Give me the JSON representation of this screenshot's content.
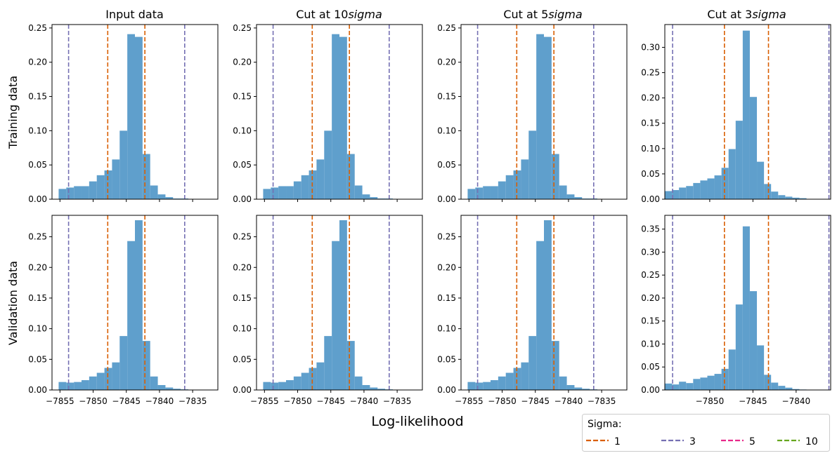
{
  "chart_data": {
    "type": "bar",
    "subtype": "histogram-grid",
    "column_titles": [
      "Input data",
      "Cut at 10",
      "Cut at 5",
      "Cut at 3"
    ],
    "column_title_suffix": "sigma",
    "row_labels": [
      "Training data",
      "Validation data"
    ],
    "xlabel": "Log-likelihood",
    "bar_color": "#5f9fcc",
    "legend": {
      "title": "Sigma:",
      "placement": "bottom-right",
      "entries": [
        {
          "label": "1",
          "color": "#d95f02"
        },
        {
          "label": "3",
          "color": "#7570b3"
        },
        {
          "label": "5",
          "color": "#e7298a"
        },
        {
          "label": "10",
          "color": "#66a61e"
        }
      ]
    },
    "panels": [
      {
        "row": 0,
        "col": 0,
        "xlim": [
          -7856.2,
          -7831.2
        ],
        "ylim": [
          0,
          0.255
        ],
        "xticks": [
          -7855,
          -7850,
          -7845,
          -7840,
          -7835
        ],
        "show_xticklabels": false,
        "yticks": [
          0.0,
          0.05,
          0.1,
          0.15,
          0.2,
          0.25
        ],
        "ytick_labels": [
          "0.00",
          "0.05",
          "0.10",
          "0.15",
          "0.20",
          "0.25"
        ],
        "bin_start": -7855.2,
        "bin_width": 1.15,
        "values": [
          0.015,
          0.017,
          0.019,
          0.019,
          0.026,
          0.035,
          0.042,
          0.058,
          0.1,
          0.241,
          0.237,
          0.066,
          0.02,
          0.007,
          0.003,
          0.001,
          0.001,
          0.0005
        ],
        "sigma_lines": [
          {
            "sigma": "1",
            "x": [
              -7847.8,
              -7842.2
            ]
          },
          {
            "sigma": "3",
            "x": [
              -7853.7,
              -7836.2
            ]
          }
        ]
      },
      {
        "row": 0,
        "col": 1,
        "xlim": [
          -7856.2,
          -7831.2
        ],
        "ylim": [
          0,
          0.255
        ],
        "xticks": [
          -7855,
          -7850,
          -7845,
          -7840,
          -7835
        ],
        "show_xticklabels": false,
        "yticks": [
          0.0,
          0.05,
          0.1,
          0.15,
          0.2,
          0.25
        ],
        "ytick_labels": [
          "0.00",
          "0.05",
          "0.10",
          "0.15",
          "0.20",
          "0.25"
        ],
        "bin_start": -7855.2,
        "bin_width": 1.15,
        "values": [
          0.015,
          0.017,
          0.019,
          0.019,
          0.026,
          0.035,
          0.042,
          0.058,
          0.1,
          0.241,
          0.237,
          0.066,
          0.02,
          0.007,
          0.003,
          0.001,
          0.001,
          0.0005
        ],
        "sigma_lines": [
          {
            "sigma": "1",
            "x": [
              -7847.8,
              -7842.2
            ]
          },
          {
            "sigma": "3",
            "x": [
              -7853.7,
              -7836.2
            ]
          }
        ]
      },
      {
        "row": 0,
        "col": 2,
        "xlim": [
          -7856.2,
          -7831.2
        ],
        "ylim": [
          0,
          0.255
        ],
        "xticks": [
          -7855,
          -7850,
          -7845,
          -7840,
          -7835
        ],
        "show_xticklabels": false,
        "yticks": [
          0.0,
          0.05,
          0.1,
          0.15,
          0.2,
          0.25
        ],
        "ytick_labels": [
          "0.00",
          "0.05",
          "0.10",
          "0.15",
          "0.20",
          "0.25"
        ],
        "bin_start": -7855.2,
        "bin_width": 1.15,
        "values": [
          0.015,
          0.017,
          0.019,
          0.019,
          0.026,
          0.035,
          0.042,
          0.058,
          0.1,
          0.241,
          0.237,
          0.066,
          0.02,
          0.007,
          0.003,
          0.001,
          0.001,
          0.0005
        ],
        "sigma_lines": [
          {
            "sigma": "1",
            "x": [
              -7847.8,
              -7842.2
            ]
          },
          {
            "sigma": "3",
            "x": [
              -7853.7,
              -7836.2
            ]
          }
        ]
      },
      {
        "row": 0,
        "col": 3,
        "xlim": [
          -7855.2,
          -7836.0
        ],
        "ylim": [
          0,
          0.345
        ],
        "xticks": [
          -7850,
          -7845,
          -7840
        ],
        "show_xticklabels": false,
        "yticks": [
          0.0,
          0.05,
          0.1,
          0.15,
          0.2,
          0.25,
          0.3
        ],
        "ytick_labels": [
          "0.00",
          "0.05",
          "0.10",
          "0.15",
          "0.20",
          "0.25",
          "0.30"
        ],
        "bin_start": -7855.2,
        "bin_width": 0.82,
        "values": [
          0.016,
          0.018,
          0.023,
          0.026,
          0.032,
          0.037,
          0.041,
          0.047,
          0.062,
          0.099,
          0.155,
          0.333,
          0.202,
          0.074,
          0.03,
          0.015,
          0.008,
          0.005,
          0.003,
          0.002
        ],
        "sigma_lines": [
          {
            "sigma": "1",
            "x": [
              -7848.3,
              -7843.2
            ]
          },
          {
            "sigma": "3",
            "x": [
              -7854.3,
              -7836.2
            ]
          }
        ]
      },
      {
        "row": 1,
        "col": 0,
        "xlim": [
          -7856.2,
          -7831.2
        ],
        "ylim": [
          0,
          0.285
        ],
        "xticks": [
          -7855,
          -7850,
          -7845,
          -7840,
          -7835
        ],
        "xtick_labels": [
          "−7855",
          "−7850",
          "−7845",
          "−7840",
          "−7835"
        ],
        "show_xticklabels": true,
        "yticks": [
          0.0,
          0.05,
          0.1,
          0.15,
          0.2,
          0.25
        ],
        "ytick_labels": [
          "0.00",
          "0.05",
          "0.10",
          "0.15",
          "0.20",
          "0.25"
        ],
        "bin_start": -7855.2,
        "bin_width": 1.15,
        "values": [
          0.013,
          0.012,
          0.013,
          0.016,
          0.022,
          0.028,
          0.036,
          0.045,
          0.088,
          0.243,
          0.277,
          0.08,
          0.022,
          0.008,
          0.004,
          0.002,
          0.001,
          0.0005
        ],
        "sigma_lines": [
          {
            "sigma": "1",
            "x": [
              -7847.8,
              -7842.2
            ]
          },
          {
            "sigma": "3",
            "x": [
              -7853.7,
              -7836.2
            ]
          }
        ]
      },
      {
        "row": 1,
        "col": 1,
        "xlim": [
          -7856.2,
          -7831.2
        ],
        "ylim": [
          0,
          0.285
        ],
        "xticks": [
          -7855,
          -7850,
          -7845,
          -7840,
          -7835
        ],
        "xtick_labels": [
          "−7855",
          "−7850",
          "−7845",
          "−7840",
          "−7835"
        ],
        "show_xticklabels": true,
        "yticks": [
          0.0,
          0.05,
          0.1,
          0.15,
          0.2,
          0.25
        ],
        "ytick_labels": [
          "0.00",
          "0.05",
          "0.10",
          "0.15",
          "0.20",
          "0.25"
        ],
        "bin_start": -7855.2,
        "bin_width": 1.15,
        "values": [
          0.013,
          0.012,
          0.013,
          0.016,
          0.022,
          0.028,
          0.036,
          0.045,
          0.088,
          0.243,
          0.277,
          0.08,
          0.022,
          0.008,
          0.004,
          0.002,
          0.001,
          0.0005
        ],
        "sigma_lines": [
          {
            "sigma": "1",
            "x": [
              -7847.8,
              -7842.2
            ]
          },
          {
            "sigma": "3",
            "x": [
              -7853.7,
              -7836.2
            ]
          }
        ]
      },
      {
        "row": 1,
        "col": 2,
        "xlim": [
          -7856.2,
          -7831.2
        ],
        "ylim": [
          0,
          0.285
        ],
        "xticks": [
          -7855,
          -7850,
          -7845,
          -7840,
          -7835
        ],
        "xtick_labels": [
          "−7855",
          "−7850",
          "−7845",
          "−7840",
          "−7835"
        ],
        "show_xticklabels": true,
        "yticks": [
          0.0,
          0.05,
          0.1,
          0.15,
          0.2,
          0.25
        ],
        "ytick_labels": [
          "0.00",
          "0.05",
          "0.10",
          "0.15",
          "0.20",
          "0.25"
        ],
        "bin_start": -7855.2,
        "bin_width": 1.15,
        "values": [
          0.013,
          0.012,
          0.013,
          0.016,
          0.022,
          0.028,
          0.036,
          0.045,
          0.088,
          0.243,
          0.277,
          0.08,
          0.022,
          0.008,
          0.004,
          0.002,
          0.001,
          0.0005
        ],
        "sigma_lines": [
          {
            "sigma": "1",
            "x": [
              -7847.8,
              -7842.2
            ]
          },
          {
            "sigma": "3",
            "x": [
              -7853.7,
              -7836.2
            ]
          }
        ]
      },
      {
        "row": 1,
        "col": 3,
        "xlim": [
          -7855.2,
          -7836.0
        ],
        "ylim": [
          0,
          0.38
        ],
        "xticks": [
          -7850,
          -7845,
          -7840
        ],
        "xtick_labels": [
          "−7850",
          "−7845",
          "−7840"
        ],
        "show_xticklabels": true,
        "yticks": [
          0.0,
          0.05,
          0.1,
          0.15,
          0.2,
          0.25,
          0.3,
          0.35
        ],
        "ytick_labels": [
          "0.00",
          "0.05",
          "0.10",
          "0.15",
          "0.20",
          "0.25",
          "0.30",
          "0.35"
        ],
        "bin_start": -7855.2,
        "bin_width": 0.82,
        "values": [
          0.014,
          0.012,
          0.018,
          0.015,
          0.024,
          0.027,
          0.031,
          0.035,
          0.046,
          0.088,
          0.186,
          0.356,
          0.215,
          0.097,
          0.033,
          0.016,
          0.009,
          0.005,
          0.002,
          0.001
        ],
        "sigma_lines": [
          {
            "sigma": "1",
            "x": [
              -7848.3,
              -7843.2
            ]
          },
          {
            "sigma": "3",
            "x": [
              -7854.3,
              -7836.2
            ]
          }
        ]
      }
    ]
  }
}
